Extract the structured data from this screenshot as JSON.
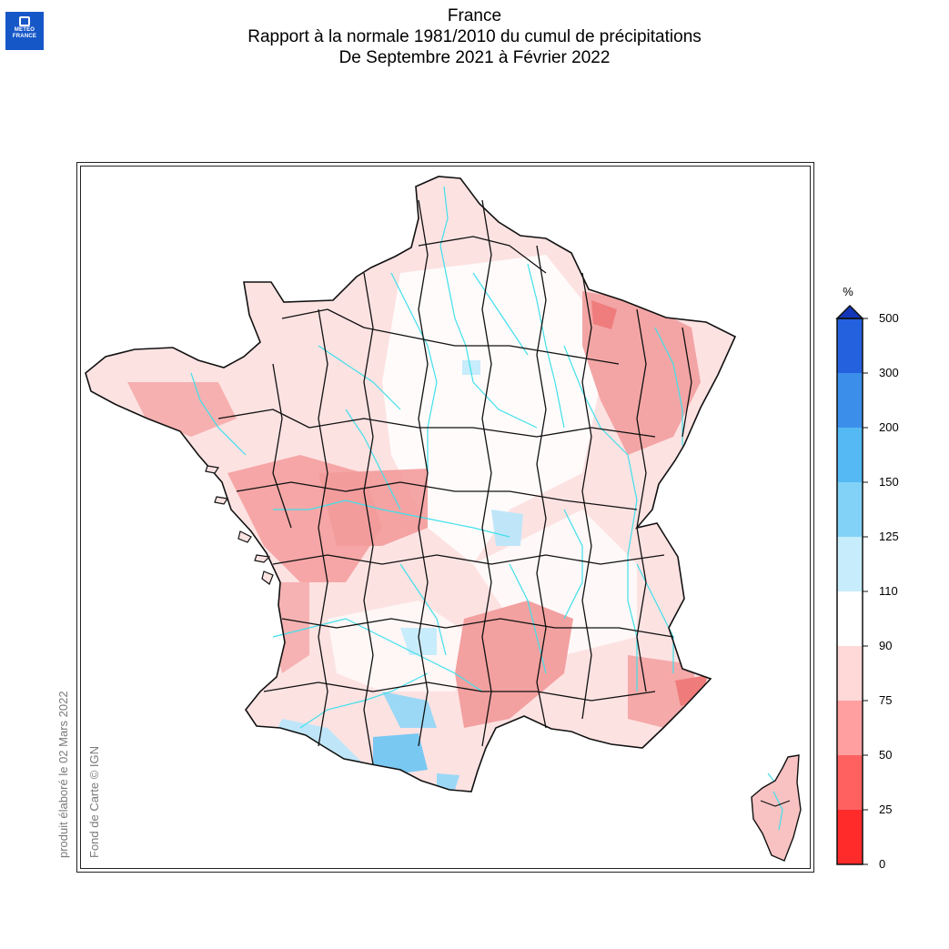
{
  "logo": {
    "line1": "METEO",
    "line2": "FRANCE"
  },
  "title": {
    "line1": "France",
    "line2": "Rapport à la normale 1981/2010 du cumul de précipitations",
    "line3": "De Septembre 2021 à Février 2022"
  },
  "credits": {
    "produced": "produit élaboré le 02 Mars 2022",
    "basemap": "Fond de Carte © IGN"
  },
  "legend": {
    "unit": "%",
    "max_arrow_color": "#1437b8",
    "bins": [
      {
        "label": "0",
        "color": "#ff2a2a"
      },
      {
        "label": "25",
        "color": "#ff6161"
      },
      {
        "label": "50",
        "color": "#ff9f9f"
      },
      {
        "label": "75",
        "color": "#ffd8d8"
      },
      {
        "label": "90",
        "color": "#ffffff"
      },
      {
        "label": "110",
        "color": "#c7ecfb"
      },
      {
        "label": "125",
        "color": "#82d2f7"
      },
      {
        "label": "150",
        "color": "#55b9f4"
      },
      {
        "label": "200",
        "color": "#3b8fea"
      },
      {
        "label": "300",
        "color": "#2361de"
      },
      {
        "label": "500",
        "color": ""
      }
    ]
  },
  "map": {
    "river_color": "#3fe0ea",
    "border_color": "#111111",
    "base_fill": "#fde2e2"
  }
}
